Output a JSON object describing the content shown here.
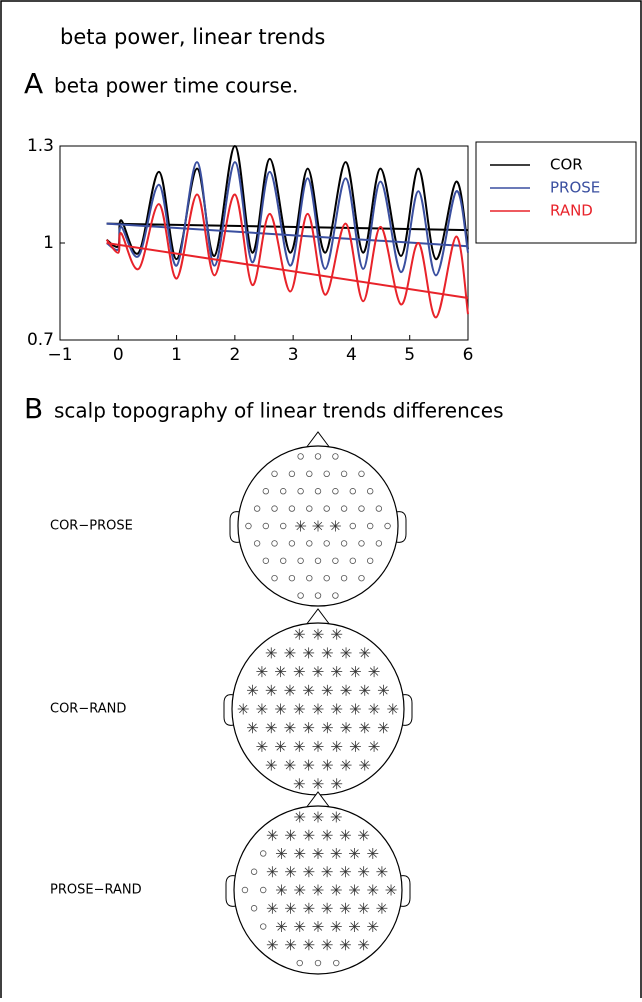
{
  "header": {
    "title": "beta power, linear trends"
  },
  "panel_a": {
    "label": "A",
    "title": "beta power time course."
  },
  "chart_data": {
    "type": "line",
    "x": [
      -0.2,
      0,
      0.05,
      0.35,
      0.7,
      1.0,
      1.35,
      1.65,
      2.0,
      2.3,
      2.6,
      2.95,
      3.25,
      3.55,
      3.9,
      4.2,
      4.5,
      4.85,
      5.15,
      5.45,
      5.8,
      6.0
    ],
    "series": [
      {
        "name": "COR",
        "color": "#000000",
        "values": [
          1.01,
          0.99,
          1.07,
          0.97,
          1.22,
          0.95,
          1.23,
          0.96,
          1.3,
          0.97,
          1.26,
          0.97,
          1.23,
          0.97,
          1.25,
          0.97,
          1.23,
          0.96,
          1.23,
          0.95,
          1.19,
          0.98
        ],
        "trend": {
          "x": [
            -0.2,
            6
          ],
          "values": [
            1.06,
            1.04
          ]
        }
      },
      {
        "name": "PROSE",
        "color": "#3a4fa0",
        "values": [
          1.0,
          0.98,
          1.05,
          0.96,
          1.18,
          0.93,
          1.25,
          0.93,
          1.25,
          0.94,
          1.22,
          0.93,
          1.2,
          0.92,
          1.2,
          0.92,
          1.19,
          0.91,
          1.16,
          0.9,
          1.16,
          0.97
        ],
        "trend": {
          "x": [
            -0.2,
            6
          ],
          "values": [
            1.06,
            0.99
          ]
        }
      },
      {
        "name": "RAND",
        "color": "#e8232a",
        "values": [
          1.01,
          0.97,
          1.03,
          0.92,
          1.12,
          0.89,
          1.15,
          0.9,
          1.15,
          0.87,
          1.09,
          0.85,
          1.09,
          0.84,
          1.06,
          0.82,
          1.05,
          0.81,
          1.0,
          0.77,
          1.02,
          0.78
        ],
        "trend": {
          "x": [
            -0.2,
            6
          ],
          "values": [
            1.0,
            0.83
          ]
        }
      }
    ],
    "xlim": [
      -1,
      6
    ],
    "xticks": [
      {
        "value": -1,
        "label": "−1"
      },
      0,
      1,
      2,
      3,
      4,
      5,
      6
    ],
    "ylim": [
      0.7,
      1.3
    ],
    "yticks": [
      0.7,
      1,
      1.3
    ],
    "legend": "outside-right"
  },
  "panel_b": {
    "label": "B",
    "title": "scalp topography of  linear trends differences",
    "topographies": [
      {
        "label": "COR−PROSE"
      },
      {
        "label": "COR−RAND"
      },
      {
        "label": "PROSE−RAND"
      }
    ]
  }
}
